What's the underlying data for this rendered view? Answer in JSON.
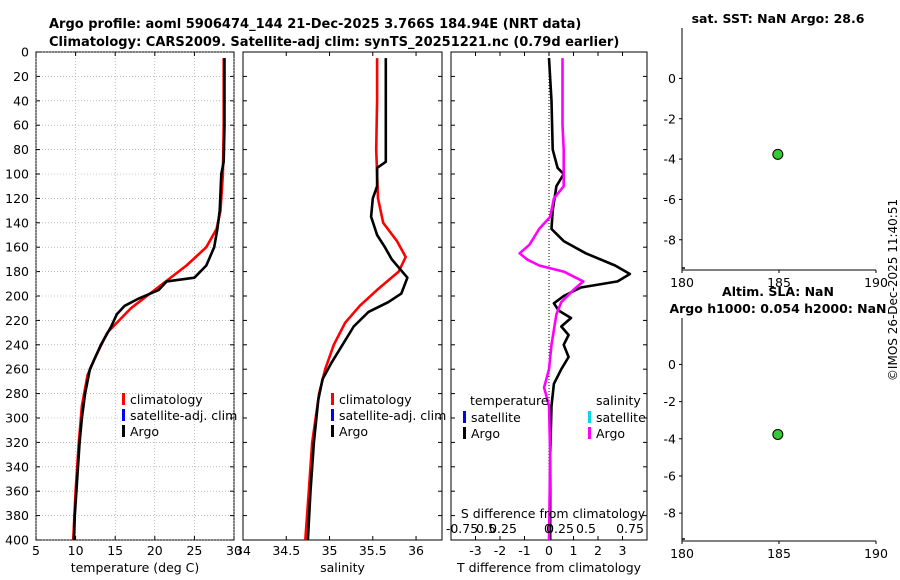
{
  "title_line1": "Argo profile: aoml 5906474_144 21-Dec-2025 3.766S 184.94E (NRT data)",
  "title_line2": "Climatology: CARS2009. Satellite-adj clim: synTS_20251221.nc (0.79d earlier)",
  "timestamp": "©IMOS 26-Dec-2025 11:40:51",
  "colors": {
    "red": "#ff0000",
    "blue": "#0000ff",
    "black": "#000000",
    "magenta": "#ff00ff",
    "cyan": "#00d8e8",
    "green": "#33cc33"
  },
  "chart_data": [
    {
      "type": "line",
      "name": "temperature-profile",
      "xlabel": "temperature (deg C)",
      "ylabel": "",
      "xlim": [
        5,
        30
      ],
      "ylim": [
        400,
        0
      ],
      "xticks": [
        "5",
        "10",
        "15",
        "20",
        "25",
        "30"
      ],
      "yticks": [
        "0",
        "20",
        "40",
        "60",
        "80",
        "100",
        "120",
        "140",
        "160",
        "180",
        "200",
        "220",
        "240",
        "260",
        "280",
        "300",
        "320",
        "340",
        "360",
        "380",
        "400"
      ],
      "legend": [
        {
          "label": "climatology",
          "color": "#ff0000"
        },
        {
          "label": "satellite-adj. clim",
          "color": "#0000ff"
        },
        {
          "label": "Argo",
          "color": "#000000"
        }
      ],
      "series": [
        {
          "name": "climatology",
          "color": "#ff0000",
          "points": [
            [
              28.7,
              5
            ],
            [
              28.7,
              60
            ],
            [
              28.6,
              100
            ],
            [
              28.3,
              130
            ],
            [
              27.8,
              145
            ],
            [
              26.5,
              160
            ],
            [
              24,
              175
            ],
            [
              20,
              195
            ],
            [
              17,
              210
            ],
            [
              14,
              230
            ],
            [
              12.5,
              250
            ],
            [
              11.5,
              265
            ],
            [
              10.8,
              290
            ],
            [
              10.4,
              320
            ],
            [
              10,
              360
            ],
            [
              9.7,
              400
            ]
          ]
        },
        {
          "name": "Argo",
          "color": "#000000",
          "points": [
            [
              28.8,
              5
            ],
            [
              28.8,
              60
            ],
            [
              28.7,
              90
            ],
            [
              28.4,
              100
            ],
            [
              28.2,
              130
            ],
            [
              27.9,
              145
            ],
            [
              27.5,
              160
            ],
            [
              26.5,
              175
            ],
            [
              25,
              185
            ],
            [
              21.5,
              188
            ],
            [
              20.5,
              195
            ],
            [
              18,
              202
            ],
            [
              16.2,
              208
            ],
            [
              15.2,
              215
            ],
            [
              14.5,
              225
            ],
            [
              13.2,
              240
            ],
            [
              12.5,
              250
            ],
            [
              11.8,
              260
            ],
            [
              11.2,
              280
            ],
            [
              10.8,
              300
            ],
            [
              10.5,
              320
            ],
            [
              10.2,
              350
            ],
            [
              9.9,
              380
            ],
            [
              9.8,
              400
            ]
          ]
        }
      ]
    },
    {
      "type": "line",
      "name": "salinity-profile",
      "xlabel": "salinity",
      "xlim": [
        34,
        36.3
      ],
      "ylim": [
        400,
        0
      ],
      "xticks": [
        "34",
        "34.5",
        "35",
        "35.5",
        "36"
      ],
      "legend": [
        {
          "label": "climatology",
          "color": "#ff0000"
        },
        {
          "label": "satellite-adj. clim",
          "color": "#0000ff"
        },
        {
          "label": "Argo",
          "color": "#000000"
        }
      ],
      "series": [
        {
          "name": "climatology",
          "color": "#ff0000",
          "points": [
            [
              35.55,
              5
            ],
            [
              35.55,
              40
            ],
            [
              35.54,
              80
            ],
            [
              35.56,
              120
            ],
            [
              35.62,
              140
            ],
            [
              35.78,
              155
            ],
            [
              35.88,
              168
            ],
            [
              35.8,
              180
            ],
            [
              35.55,
              195
            ],
            [
              35.35,
              208
            ],
            [
              35.18,
              222
            ],
            [
              35.05,
              240
            ],
            [
              34.95,
              260
            ],
            [
              34.88,
              280
            ],
            [
              34.8,
              320
            ],
            [
              34.76,
              360
            ],
            [
              34.72,
              400
            ]
          ]
        },
        {
          "name": "Argo",
          "color": "#000000",
          "points": [
            [
              35.65,
              5
            ],
            [
              35.65,
              90
            ],
            [
              35.55,
              95
            ],
            [
              35.55,
              110
            ],
            [
              35.5,
              120
            ],
            [
              35.48,
              135
            ],
            [
              35.55,
              150
            ],
            [
              35.64,
              160
            ],
            [
              35.72,
              170
            ],
            [
              35.9,
              185
            ],
            [
              35.83,
              198
            ],
            [
              35.68,
              205
            ],
            [
              35.45,
              213
            ],
            [
              35.28,
              225
            ],
            [
              35.15,
              240
            ],
            [
              35.02,
              255
            ],
            [
              34.92,
              268
            ],
            [
              34.87,
              285
            ],
            [
              34.82,
              320
            ],
            [
              34.78,
              360
            ],
            [
              34.75,
              400
            ]
          ]
        }
      ]
    },
    {
      "type": "line",
      "name": "difference-profile",
      "xlabel": "T difference from climatology",
      "xlabel_top": "S difference from climatology",
      "xlim": [
        -4,
        4
      ],
      "ylim": [
        400,
        0
      ],
      "xticks": [
        "-3",
        "-2",
        "-1",
        "0",
        "1",
        "2",
        "3"
      ],
      "xticks_top": [
        "-0.75",
        "0.5",
        "0.25",
        "0",
        "0.25",
        "0.5",
        "0.75"
      ],
      "legend_left_title": "temperature",
      "legend_right_title": "salinity",
      "legend": [
        {
          "label": "satellite",
          "color": "#0000ff",
          "side": "left"
        },
        {
          "label": "Argo",
          "color": "#000000",
          "side": "left"
        },
        {
          "label": "satellite",
          "color": "#00d8e8",
          "side": "right"
        },
        {
          "label": "Argo",
          "color": "#ff00ff",
          "side": "right"
        }
      ],
      "series": [
        {
          "name": "temperature Argo",
          "color": "#000000",
          "points": [
            [
              0,
              5
            ],
            [
              0.1,
              40
            ],
            [
              0.15,
              80
            ],
            [
              0.35,
              95
            ],
            [
              0.6,
              100
            ],
            [
              0.3,
              110
            ],
            [
              0.15,
              130
            ],
            [
              0.1,
              145
            ],
            [
              0.6,
              155
            ],
            [
              1.5,
              165
            ],
            [
              2.7,
              175
            ],
            [
              3.3,
              182
            ],
            [
              2.8,
              188
            ],
            [
              1.3,
              193
            ],
            [
              0.6,
              200
            ],
            [
              0.2,
              206
            ],
            [
              0.4,
              212
            ],
            [
              0.9,
              218
            ],
            [
              0.5,
              225
            ],
            [
              0.8,
              232
            ],
            [
              0.6,
              240
            ],
            [
              0.8,
              250
            ],
            [
              0.5,
              260
            ],
            [
              0.2,
              272
            ],
            [
              0.1,
              290
            ],
            [
              0.05,
              330
            ],
            [
              0.05,
              400
            ]
          ]
        },
        {
          "name": "salinity Argo",
          "color": "#ff00ff",
          "points": [
            [
              0.55,
              5
            ],
            [
              0.55,
              60
            ],
            [
              0.6,
              80
            ],
            [
              0.6,
              110
            ],
            [
              0.2,
              120
            ],
            [
              0.05,
              135
            ],
            [
              -0.4,
              145
            ],
            [
              -0.8,
              158
            ],
            [
              -1.2,
              165
            ],
            [
              -0.9,
              170
            ],
            [
              -0.4,
              175
            ],
            [
              0.6,
              180
            ],
            [
              1.4,
              188
            ],
            [
              1.0,
              195
            ],
            [
              0.5,
              205
            ],
            [
              0.3,
              215
            ],
            [
              0.1,
              240
            ],
            [
              0,
              260
            ],
            [
              -0.2,
              275
            ],
            [
              0,
              290
            ],
            [
              0.05,
              330
            ],
            [
              0,
              400
            ]
          ]
        }
      ]
    },
    {
      "type": "scatter",
      "name": "sst-map",
      "title": "sat. SST: NaN Argo: 28.6",
      "xlim": [
        180,
        190
      ],
      "ylim": [
        -9.5,
        2.5
      ],
      "xticks": [
        "180",
        "185",
        "190"
      ],
      "yticks": [
        "0",
        "-2",
        "-4",
        "-6",
        "-8"
      ],
      "points": [
        {
          "x": 184.94,
          "y": -3.766
        }
      ]
    },
    {
      "type": "scatter",
      "name": "sla-map",
      "title": "Altim. SLA: NaN",
      "subtitle": "Argo h1000: 0.054 h2000: NaN",
      "xlim": [
        180,
        190
      ],
      "ylim": [
        -9.5,
        2.5
      ],
      "xticks": [
        "180",
        "185",
        "190"
      ],
      "yticks": [
        "0",
        "-2",
        "-4",
        "-6",
        "-8"
      ],
      "points": [
        {
          "x": 184.94,
          "y": -3.766
        }
      ]
    }
  ]
}
